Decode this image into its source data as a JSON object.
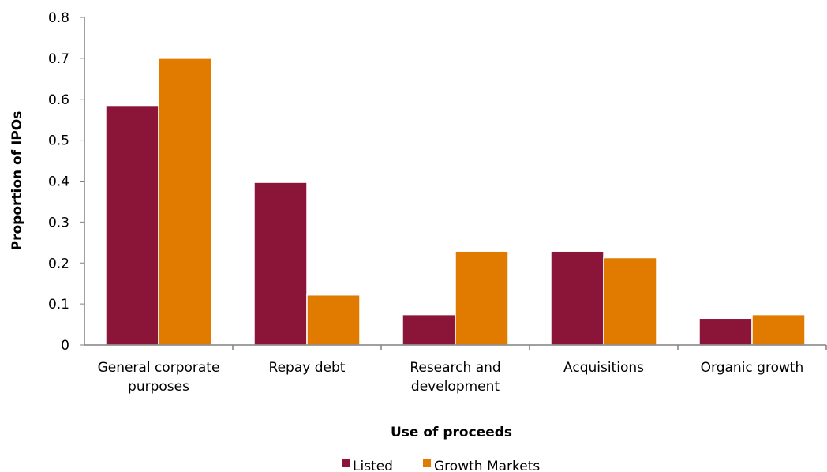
{
  "chart_data": {
    "type": "bar",
    "title": "",
    "xlabel": "Use of proceeds",
    "ylabel": "Proportion of IPOs",
    "ylim": [
      0,
      0.8
    ],
    "yticks": [
      "0",
      "0.1",
      "0.2",
      "0.3",
      "0.4",
      "0.5",
      "0.6",
      "0.7",
      "0.8"
    ],
    "categories": [
      [
        "General corporate",
        "purposes"
      ],
      [
        "Repay debt"
      ],
      [
        "Research and",
        "development"
      ],
      [
        "Acquisitions"
      ],
      [
        "Organic growth"
      ]
    ],
    "series": [
      {
        "name": "Listed",
        "color": "#8b1538",
        "values": [
          0.585,
          0.397,
          0.074,
          0.229,
          0.065
        ]
      },
      {
        "name": "Growth Markets",
        "color": "#e07b00",
        "values": [
          0.7,
          0.122,
          0.229,
          0.213,
          0.074
        ]
      }
    ],
    "grid": false,
    "legend_position": "bottom-center"
  }
}
